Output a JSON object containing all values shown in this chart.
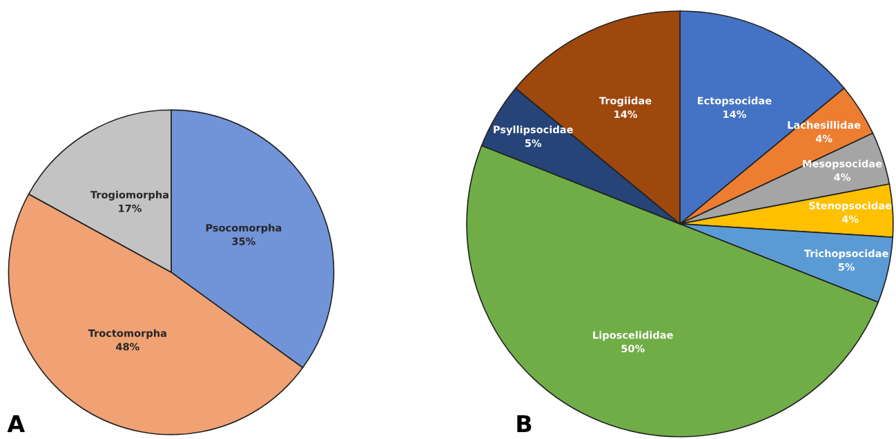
{
  "chart_data": [
    {
      "type": "pie",
      "categories": [
        "Psocomorpha",
        "Troctomorpha",
        "Trogiomorpha"
      ],
      "values": [
        35,
        48,
        17
      ],
      "value_labels": [
        "35%",
        "48%",
        "17%"
      ],
      "colors": [
        "#7193d8",
        "#f0a274",
        "#c3c3c3"
      ],
      "annotations": [
        "A"
      ]
    },
    {
      "type": "pie",
      "categories": [
        "Ectopsocidae",
        "Lachesillidae",
        "Mesopsocidae",
        "Stenopsocidae",
        "Trichopsocidae",
        "Liposcelididae",
        "Psyllipsocidae",
        "Trogiidae"
      ],
      "values": [
        14,
        4,
        4,
        4,
        5,
        50,
        5,
        14
      ],
      "value_labels": [
        "14%",
        "4%",
        "4%",
        "4%",
        "5%",
        "50%",
        "5%",
        "14%"
      ],
      "colors": [
        "#4472c4",
        "#ed7d31",
        "#a5a5a5",
        "#ffc000",
        "#5b9bd5",
        "#70ad47",
        "#264478",
        "#9e480e"
      ],
      "annotations": [
        "B"
      ]
    }
  ]
}
